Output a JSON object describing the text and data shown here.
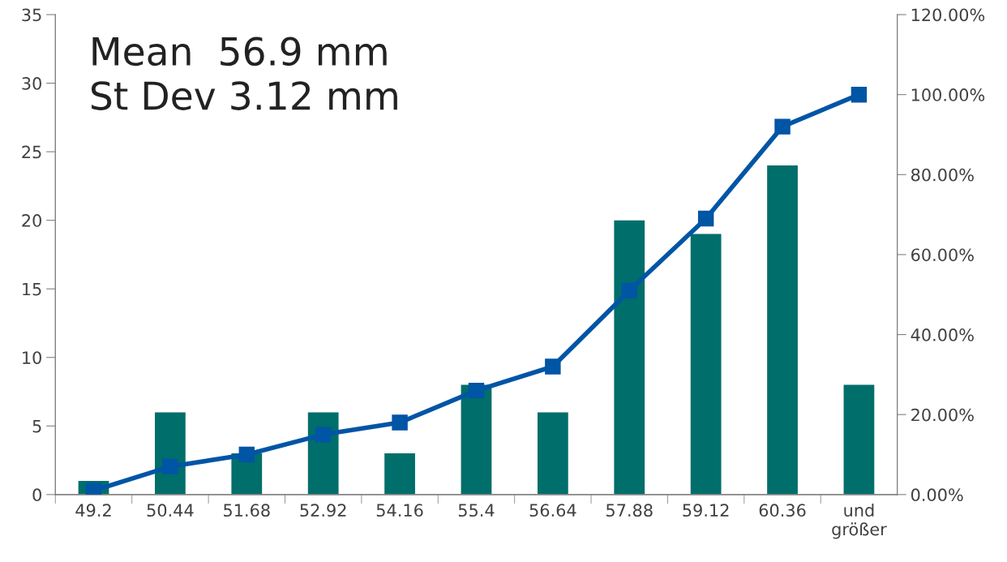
{
  "chart_data": {
    "type": "bar",
    "categories": [
      "49.2",
      "50.44",
      "51.68",
      "52.92",
      "54.16",
      "55.4",
      "56.64",
      "57.88",
      "59.12",
      "60.36",
      "und\ngrößer"
    ],
    "series": [
      {
        "color": "#006e6a",
        "values": [
          1,
          6,
          3,
          6,
          3,
          8,
          6,
          20,
          19,
          24,
          8
        ]
      },
      {
        "type": "line",
        "axis": "y2",
        "color": "#0055a5",
        "marker": "square",
        "line_style": "solid",
        "values": [
          1,
          7,
          10,
          15,
          18,
          26,
          32,
          51,
          69,
          92,
          100
        ]
      }
    ],
    "ylim": [
      0,
      35
    ],
    "yticks": [
      0,
      5,
      10,
      15,
      20,
      25,
      30,
      35
    ],
    "y2lim": [
      0,
      120
    ],
    "y2ticks": [
      {
        "value": 0,
        "label": "0.00%"
      },
      {
        "value": 20,
        "label": "20.00%"
      },
      {
        "value": 40,
        "label": "40.00%"
      },
      {
        "value": 60,
        "label": "60.00%"
      },
      {
        "value": 80,
        "label": "80.00%"
      },
      {
        "value": 100,
        "label": "100.00%"
      },
      {
        "value": 120,
        "label": "120.00%"
      }
    ],
    "annotations": [
      "Mean  56.9 mm",
      "St Dev 3.12 mm"
    ],
    "grid": false,
    "legend": false
  }
}
